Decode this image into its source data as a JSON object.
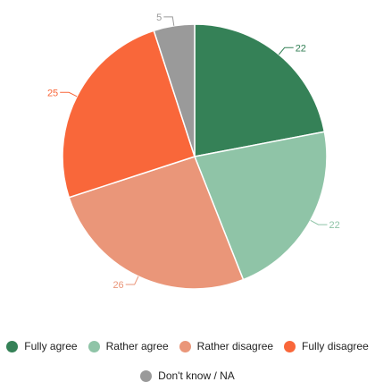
{
  "chart_data": {
    "type": "pie",
    "title": "",
    "start_angle": "12 o'clock",
    "direction": "clockwise",
    "legend_position": "bottom",
    "slices": [
      {
        "name": "Fully agree",
        "value": 22,
        "label": "22",
        "color": "#358157"
      },
      {
        "name": "Rather agree",
        "value": 22,
        "label": "22",
        "color": "#8fc4a7"
      },
      {
        "name": "Rather disagree",
        "value": 26,
        "label": "26",
        "color": "#ea9679"
      },
      {
        "name": "Fully disagree",
        "value": 25,
        "label": "25",
        "color": "#f9673a"
      },
      {
        "name": "Don't know / NA",
        "value": 5,
        "label": "5",
        "color": "#9a9a9a"
      }
    ]
  }
}
